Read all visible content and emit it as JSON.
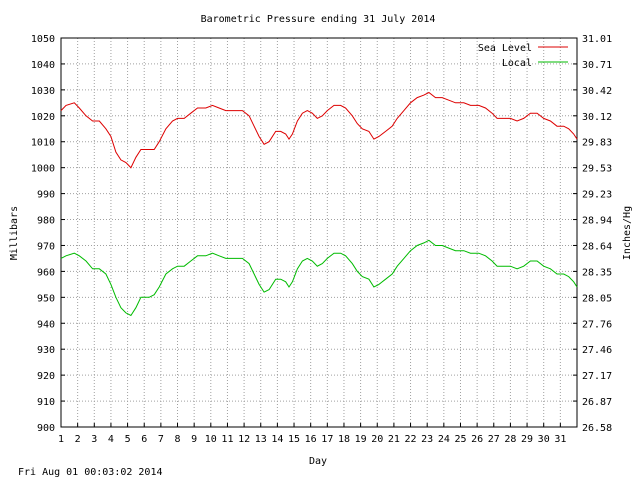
{
  "chart_data": {
    "type": "line",
    "title": "Barometric Pressure ending 31 July 2014",
    "xlabel": "Day",
    "ylabel": "Millibars",
    "ylabel_right": "Inches/Hg",
    "xlim": [
      1,
      32
    ],
    "ylim": [
      900,
      1050
    ],
    "grid": true,
    "legend_position": "top-right",
    "x_ticks": [
      "1",
      "2",
      "3",
      "4",
      "5",
      "6",
      "7",
      "8",
      "9",
      "10",
      "11",
      "12",
      "13",
      "14",
      "15",
      "16",
      "17",
      "18",
      "19",
      "20",
      "21",
      "22",
      "23",
      "24",
      "25",
      "26",
      "27",
      "28",
      "29",
      "30",
      "31"
    ],
    "y_ticks_left": [
      "900",
      "910",
      "920",
      "930",
      "940",
      "950",
      "960",
      "970",
      "980",
      "990",
      "1000",
      "1010",
      "1020",
      "1030",
      "1040",
      "1050"
    ],
    "y_ticks_right": [
      "26.58",
      "26.87",
      "27.17",
      "27.46",
      "27.76",
      "28.05",
      "28.35",
      "28.64",
      "28.94",
      "29.23",
      "29.53",
      "29.83",
      "30.12",
      "30.42",
      "30.71",
      "31.01"
    ],
    "footer": "Fri Aug 01 00:03:02 2014",
    "series": [
      {
        "name": "Sea Level",
        "color": "#dd0000",
        "points": [
          [
            1.0,
            1022
          ],
          [
            1.3,
            1024
          ],
          [
            1.8,
            1025
          ],
          [
            2.1,
            1023
          ],
          [
            2.5,
            1020
          ],
          [
            2.9,
            1018
          ],
          [
            3.3,
            1018
          ],
          [
            3.7,
            1015
          ],
          [
            4.0,
            1012
          ],
          [
            4.3,
            1006
          ],
          [
            4.6,
            1003
          ],
          [
            4.9,
            1002
          ],
          [
            5.2,
            1000
          ],
          [
            5.5,
            1004
          ],
          [
            5.8,
            1007
          ],
          [
            6.3,
            1007
          ],
          [
            6.6,
            1007
          ],
          [
            6.9,
            1010
          ],
          [
            7.3,
            1015
          ],
          [
            7.7,
            1018
          ],
          [
            8.0,
            1019
          ],
          [
            8.4,
            1019
          ],
          [
            8.8,
            1021
          ],
          [
            9.2,
            1023
          ],
          [
            9.7,
            1023
          ],
          [
            10.1,
            1024
          ],
          [
            10.5,
            1023
          ],
          [
            10.9,
            1022
          ],
          [
            11.5,
            1022
          ],
          [
            11.9,
            1022
          ],
          [
            12.3,
            1020
          ],
          [
            12.6,
            1016
          ],
          [
            12.9,
            1012
          ],
          [
            13.2,
            1009
          ],
          [
            13.5,
            1010
          ],
          [
            13.9,
            1014
          ],
          [
            14.2,
            1014
          ],
          [
            14.5,
            1013
          ],
          [
            14.7,
            1011
          ],
          [
            14.9,
            1013
          ],
          [
            15.2,
            1018
          ],
          [
            15.5,
            1021
          ],
          [
            15.8,
            1022
          ],
          [
            16.1,
            1021
          ],
          [
            16.4,
            1019
          ],
          [
            16.7,
            1020
          ],
          [
            17.0,
            1022
          ],
          [
            17.4,
            1024
          ],
          [
            17.8,
            1024
          ],
          [
            18.1,
            1023
          ],
          [
            18.5,
            1020
          ],
          [
            18.8,
            1017
          ],
          [
            19.1,
            1015
          ],
          [
            19.5,
            1014
          ],
          [
            19.8,
            1011
          ],
          [
            20.1,
            1012
          ],
          [
            20.5,
            1014
          ],
          [
            20.9,
            1016
          ],
          [
            21.2,
            1019
          ],
          [
            21.6,
            1022
          ],
          [
            22.0,
            1025
          ],
          [
            22.4,
            1027
          ],
          [
            22.8,
            1028
          ],
          [
            23.1,
            1029
          ],
          [
            23.5,
            1027
          ],
          [
            23.9,
            1027
          ],
          [
            24.3,
            1026
          ],
          [
            24.7,
            1025
          ],
          [
            25.2,
            1025
          ],
          [
            25.6,
            1024
          ],
          [
            26.1,
            1024
          ],
          [
            26.5,
            1023
          ],
          [
            26.9,
            1021
          ],
          [
            27.2,
            1019
          ],
          [
            27.6,
            1019
          ],
          [
            28.0,
            1019
          ],
          [
            28.4,
            1018
          ],
          [
            28.8,
            1019
          ],
          [
            29.2,
            1021
          ],
          [
            29.6,
            1021
          ],
          [
            30.0,
            1019
          ],
          [
            30.4,
            1018
          ],
          [
            30.8,
            1016
          ],
          [
            31.2,
            1016
          ],
          [
            31.5,
            1015
          ],
          [
            31.8,
            1013
          ],
          [
            32.0,
            1011
          ]
        ]
      },
      {
        "name": "Local",
        "color": "#00bb00",
        "points": [
          [
            1.0,
            965
          ],
          [
            1.3,
            966
          ],
          [
            1.8,
            967
          ],
          [
            2.1,
            966
          ],
          [
            2.5,
            964
          ],
          [
            2.9,
            961
          ],
          [
            3.3,
            961
          ],
          [
            3.7,
            959
          ],
          [
            4.0,
            955
          ],
          [
            4.3,
            950
          ],
          [
            4.6,
            946
          ],
          [
            4.9,
            944
          ],
          [
            5.2,
            943
          ],
          [
            5.5,
            946
          ],
          [
            5.8,
            950
          ],
          [
            6.3,
            950
          ],
          [
            6.6,
            951
          ],
          [
            6.9,
            954
          ],
          [
            7.3,
            959
          ],
          [
            7.7,
            961
          ],
          [
            8.0,
            962
          ],
          [
            8.4,
            962
          ],
          [
            8.8,
            964
          ],
          [
            9.2,
            966
          ],
          [
            9.7,
            966
          ],
          [
            10.1,
            967
          ],
          [
            10.5,
            966
          ],
          [
            10.9,
            965
          ],
          [
            11.5,
            965
          ],
          [
            11.9,
            965
          ],
          [
            12.3,
            963
          ],
          [
            12.6,
            959
          ],
          [
            12.9,
            955
          ],
          [
            13.2,
            952
          ],
          [
            13.5,
            953
          ],
          [
            13.9,
            957
          ],
          [
            14.2,
            957
          ],
          [
            14.5,
            956
          ],
          [
            14.7,
            954
          ],
          [
            14.9,
            956
          ],
          [
            15.2,
            961
          ],
          [
            15.5,
            964
          ],
          [
            15.8,
            965
          ],
          [
            16.1,
            964
          ],
          [
            16.4,
            962
          ],
          [
            16.7,
            963
          ],
          [
            17.0,
            965
          ],
          [
            17.4,
            967
          ],
          [
            17.8,
            967
          ],
          [
            18.1,
            966
          ],
          [
            18.5,
            963
          ],
          [
            18.8,
            960
          ],
          [
            19.1,
            958
          ],
          [
            19.5,
            957
          ],
          [
            19.8,
            954
          ],
          [
            20.1,
            955
          ],
          [
            20.5,
            957
          ],
          [
            20.9,
            959
          ],
          [
            21.2,
            962
          ],
          [
            21.6,
            965
          ],
          [
            22.0,
            968
          ],
          [
            22.4,
            970
          ],
          [
            22.8,
            971
          ],
          [
            23.1,
            972
          ],
          [
            23.5,
            970
          ],
          [
            23.9,
            970
          ],
          [
            24.3,
            969
          ],
          [
            24.7,
            968
          ],
          [
            25.2,
            968
          ],
          [
            25.6,
            967
          ],
          [
            26.1,
            967
          ],
          [
            26.5,
            966
          ],
          [
            26.9,
            964
          ],
          [
            27.2,
            962
          ],
          [
            27.6,
            962
          ],
          [
            28.0,
            962
          ],
          [
            28.4,
            961
          ],
          [
            28.8,
            962
          ],
          [
            29.2,
            964
          ],
          [
            29.6,
            964
          ],
          [
            30.0,
            962
          ],
          [
            30.4,
            961
          ],
          [
            30.8,
            959
          ],
          [
            31.2,
            959
          ],
          [
            31.5,
            958
          ],
          [
            31.8,
            956
          ],
          [
            32.0,
            954
          ]
        ]
      }
    ]
  }
}
